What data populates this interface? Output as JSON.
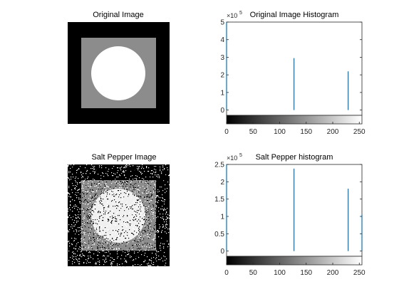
{
  "figure": {
    "panels": [
      {
        "id": "orig-img",
        "title": "Original Image"
      },
      {
        "id": "sp-img",
        "title": "Salt Pepper Image"
      }
    ]
  },
  "chart_data": [
    {
      "type": "bar",
      "title": "Original Image Histogram",
      "xlim": [
        0,
        255
      ],
      "ylim": [
        -0.3,
        5
      ],
      "xticks": [
        0,
        50,
        100,
        150,
        200,
        250
      ],
      "yticks": [
        0,
        1,
        2,
        3,
        4,
        5
      ],
      "y_exponent_label": "×10",
      "y_exponent": "5",
      "x": [
        0,
        127,
        229
      ],
      "values": [
        5.0,
        2.95,
        2.2
      ],
      "bar_color": "#0072BD",
      "colorbar": "gray"
    },
    {
      "type": "bar",
      "title": "Salt Pepper histogram",
      "xlim": [
        0,
        255
      ],
      "ylim": [
        -0.15,
        2.5
      ],
      "xticks": [
        0,
        50,
        100,
        150,
        200,
        250
      ],
      "yticks": [
        0,
        0.5,
        1,
        1.5,
        2,
        2.5
      ],
      "y_exponent_label": "×10",
      "y_exponent": "5",
      "x": [
        0,
        127,
        229,
        255
      ],
      "values": [
        2.5,
        2.38,
        1.8,
        1.05
      ],
      "bar_color": "#0072BD",
      "colorbar": "gray"
    }
  ]
}
